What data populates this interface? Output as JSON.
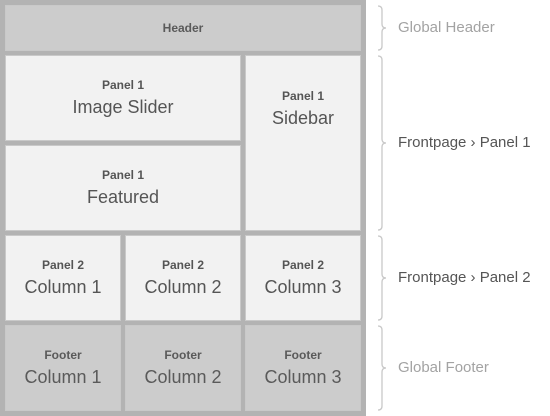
{
  "header": {
    "title": "Header"
  },
  "panel1": {
    "image_slider": {
      "panel": "Panel 1",
      "name": "Image Slider"
    },
    "sidebar": {
      "panel": "Panel 1",
      "name": "Sidebar"
    },
    "featured": {
      "panel": "Panel 1",
      "name": "Featured"
    }
  },
  "panel2": {
    "columns": [
      {
        "panel": "Panel 2",
        "name": "Column 1"
      },
      {
        "panel": "Panel 2",
        "name": "Column 2"
      },
      {
        "panel": "Panel 2",
        "name": "Column 3"
      }
    ]
  },
  "footer": {
    "columns": [
      {
        "panel": "Footer",
        "name": "Column 1"
      },
      {
        "panel": "Footer",
        "name": "Column 2"
      },
      {
        "panel": "Footer",
        "name": "Column 3"
      }
    ]
  },
  "annotations": [
    {
      "text": "Global Header",
      "style": "muted"
    },
    {
      "text": "Frontpage › Panel 1",
      "style": "active"
    },
    {
      "text": "Frontpage › Panel 2",
      "style": "active"
    },
    {
      "text": "Global Footer",
      "style": "muted"
    }
  ],
  "colors": {
    "frame": "#b3b3b3",
    "panel_light": "#f2f2f2",
    "panel_dark": "#cccccc",
    "text": "#555555",
    "muted_text": "#a3a3a3",
    "brace": "#c8c8c8"
  }
}
